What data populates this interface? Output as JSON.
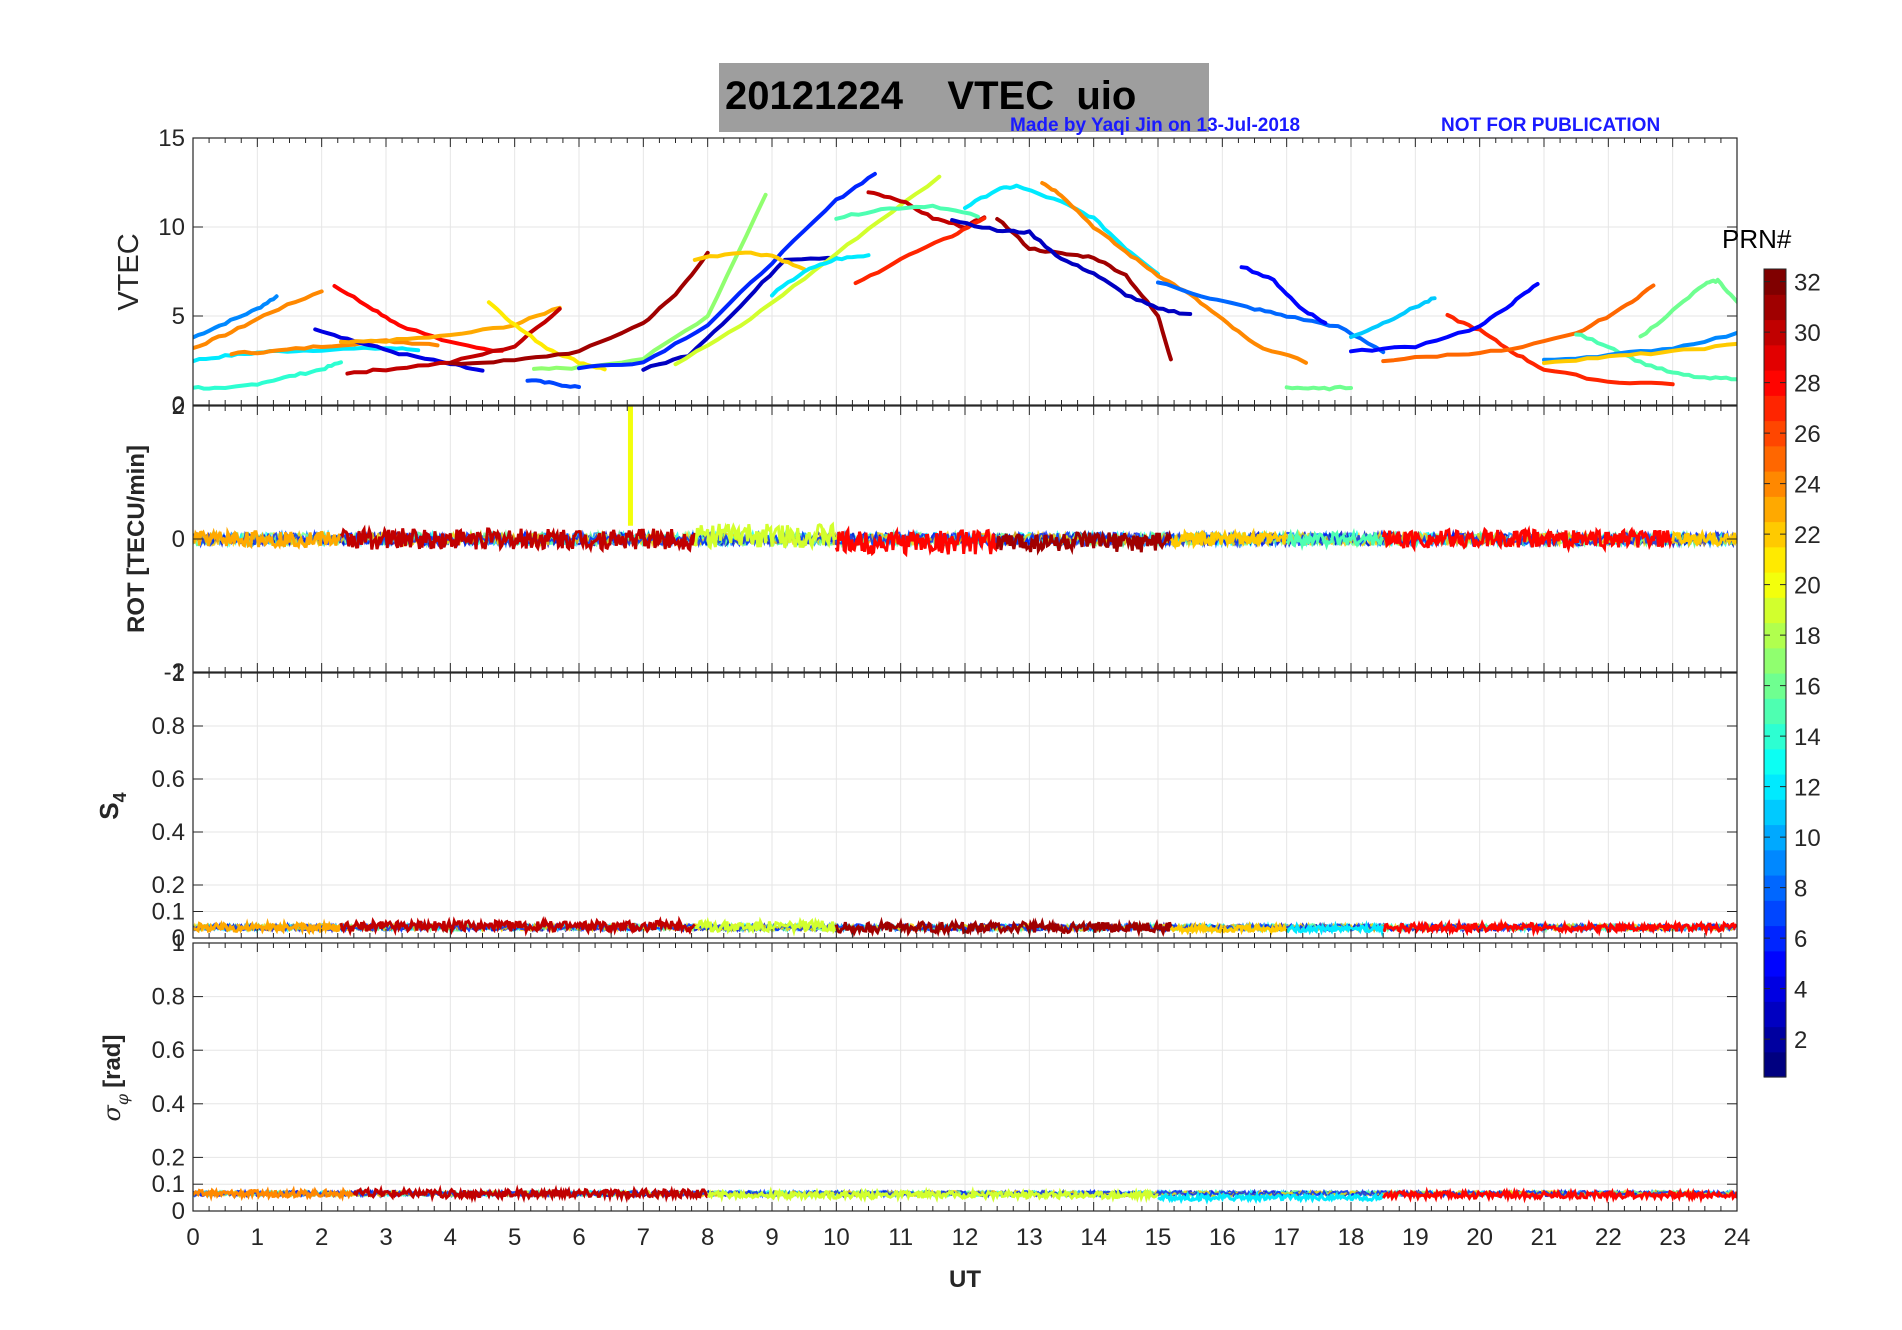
{
  "figure": {
    "title_date": "20121224",
    "title_label": "VTEC  uio",
    "credit": "Made by Yaqi Jin on 13-Jul-2018",
    "notice": "NOT FOR PUBLICATION",
    "xlabel": "UT"
  },
  "colorbar": {
    "label": "PRN#",
    "ticks": [
      "2",
      "4",
      "6",
      "8",
      "10",
      "12",
      "14",
      "16",
      "18",
      "20",
      "22",
      "24",
      "26",
      "28",
      "30",
      "32"
    ],
    "range": [
      1,
      32
    ]
  },
  "chart_data": [
    {
      "type": "line",
      "panel": "vtec",
      "ylabel": "VTEC",
      "ylim": [
        0,
        15
      ],
      "yticks": [
        "0",
        "5",
        "10",
        "15"
      ],
      "xlim": [
        0,
        24
      ],
      "xticks": [
        "0",
        "1",
        "2",
        "3",
        "4",
        "5",
        "6",
        "7",
        "8",
        "9",
        "10",
        "11",
        "12",
        "13",
        "14",
        "15",
        "16",
        "17",
        "18",
        "19",
        "20",
        "21",
        "22",
        "23",
        "24"
      ],
      "series": [
        {
          "prn": 9,
          "x": [
            0.0,
            0.5,
            1.0,
            1.3
          ],
          "y": [
            3.8,
            4.6,
            5.4,
            6.1
          ]
        },
        {
          "prn": 24,
          "x": [
            0.0,
            0.6,
            1.2,
            2.0
          ],
          "y": [
            3.2,
            4.1,
            5.2,
            6.4
          ]
        },
        {
          "prn": 12,
          "x": [
            0.0,
            0.6,
            1.2,
            2.0,
            3.0,
            3.5
          ],
          "y": [
            2.5,
            2.8,
            3.0,
            3.1,
            3.2,
            3.1
          ]
        },
        {
          "prn": 14,
          "x": [
            0.0,
            0.5,
            1.0,
            1.5,
            2.0,
            2.3
          ],
          "y": [
            1.0,
            0.9,
            1.2,
            1.6,
            2.0,
            2.4
          ]
        },
        {
          "prn": 24,
          "x": [
            0.6,
            1.2,
            2.0,
            3.0,
            3.8
          ],
          "y": [
            2.9,
            3.0,
            3.3,
            3.6,
            3.4
          ]
        },
        {
          "prn": 28,
          "x": [
            2.2,
            2.8,
            3.2,
            4.0,
            4.8
          ],
          "y": [
            6.7,
            5.4,
            4.5,
            3.5,
            3.0
          ]
        },
        {
          "prn": 4,
          "x": [
            1.9,
            2.5,
            3.2,
            4.0,
            4.5
          ],
          "y": [
            4.3,
            3.6,
            2.9,
            2.3,
            1.9
          ]
        },
        {
          "prn": 23,
          "x": [
            2.3,
            3.0,
            4.0,
            5.0,
            5.7
          ],
          "y": [
            3.5,
            3.6,
            3.9,
            4.5,
            5.5
          ]
        },
        {
          "prn": 30,
          "x": [
            2.4,
            3.0,
            4.0,
            5.0,
            5.7
          ],
          "y": [
            1.8,
            2.0,
            2.4,
            3.3,
            5.4
          ]
        },
        {
          "prn": 21,
          "x": [
            4.6,
            5.0,
            5.5,
            6.0,
            6.4
          ],
          "y": [
            5.8,
            4.5,
            3.2,
            2.4,
            2.0
          ]
        },
        {
          "prn": 7,
          "x": [
            5.2,
            5.6,
            6.0
          ],
          "y": [
            1.4,
            1.2,
            1.0
          ]
        },
        {
          "prn": 31,
          "x": [
            4.0,
            5.0,
            6.0,
            7.0,
            7.5,
            8.0
          ],
          "y": [
            2.3,
            2.5,
            3.0,
            4.6,
            6.2,
            8.5
          ]
        },
        {
          "prn": 17,
          "x": [
            5.3,
            6.0,
            7.0,
            8.0,
            8.9
          ],
          "y": [
            2.0,
            2.1,
            2.6,
            5.0,
            11.8
          ]
        },
        {
          "prn": 6,
          "x": [
            6.0,
            7.0,
            8.0,
            9.0,
            10.0,
            10.6
          ],
          "y": [
            2.1,
            2.4,
            4.5,
            8.0,
            11.5,
            13.0
          ]
        },
        {
          "prn": 3,
          "x": [
            7.0,
            7.7,
            8.5,
            9.2,
            10.0
          ],
          "y": [
            2.0,
            2.8,
            5.5,
            8.2,
            8.3
          ]
        },
        {
          "prn": 19,
          "x": [
            7.5,
            8.5,
            9.5,
            10.5,
            11.6
          ],
          "y": [
            2.3,
            4.4,
            7.1,
            9.9,
            12.8
          ]
        },
        {
          "prn": 22,
          "x": [
            7.8,
            8.5,
            9.0,
            9.5
          ],
          "y": [
            8.2,
            8.6,
            8.4,
            7.6
          ]
        },
        {
          "prn": 12,
          "x": [
            9.0,
            9.5,
            10.0,
            10.5
          ],
          "y": [
            6.2,
            7.5,
            8.2,
            8.4
          ]
        },
        {
          "prn": 30,
          "x": [
            10.5,
            11.0,
            11.5,
            12.0,
            12.3
          ],
          "y": [
            12.0,
            11.5,
            10.5,
            10.0,
            10.6
          ]
        },
        {
          "prn": 15,
          "x": [
            10.0,
            10.7,
            11.5,
            12.2
          ],
          "y": [
            10.5,
            11.0,
            11.2,
            10.6
          ]
        },
        {
          "prn": 27,
          "x": [
            10.3,
            11.0,
            11.8,
            12.3
          ],
          "y": [
            6.8,
            8.2,
            9.5,
            10.5
          ]
        },
        {
          "prn": 12,
          "x": [
            12.0,
            12.5,
            12.8,
            13.5,
            14.0,
            14.5,
            15.0
          ],
          "y": [
            11.1,
            12.1,
            12.3,
            11.4,
            10.5,
            8.8,
            7.4
          ]
        },
        {
          "prn": 24,
          "x": [
            13.2,
            13.5,
            14.0,
            14.5,
            15.0,
            15.5,
            16.0,
            16.5,
            17.3
          ],
          "y": [
            12.5,
            11.8,
            10.0,
            8.6,
            7.3,
            6.2,
            4.8,
            3.4,
            2.4
          ]
        },
        {
          "prn": 31,
          "x": [
            12.5,
            13.0,
            13.5,
            14.0,
            14.5,
            15.0,
            15.2
          ],
          "y": [
            10.5,
            8.8,
            8.5,
            8.3,
            7.3,
            5.0,
            2.6
          ]
        },
        {
          "prn": 3,
          "x": [
            11.8,
            12.5,
            13.0,
            13.5,
            14.0,
            14.5,
            15.0,
            15.5
          ],
          "y": [
            10.4,
            9.8,
            9.7,
            8.2,
            7.4,
            6.2,
            5.4,
            5.1
          ]
        },
        {
          "prn": 8,
          "x": [
            15.0,
            15.8,
            16.5,
            17.0,
            17.8,
            18.5
          ],
          "y": [
            6.9,
            6.0,
            5.4,
            5.0,
            4.4,
            3.0
          ]
        },
        {
          "prn": 16,
          "x": [
            17.0,
            17.5,
            18.0
          ],
          "y": [
            1.0,
            0.9,
            1.0
          ]
        },
        {
          "prn": 5,
          "x": [
            16.3,
            16.8,
            17.2,
            17.6
          ],
          "y": [
            7.8,
            7.0,
            5.5,
            4.6
          ]
        },
        {
          "prn": 11,
          "x": [
            18.0,
            18.5,
            19.0,
            19.3
          ],
          "y": [
            3.8,
            4.6,
            5.5,
            6.0
          ]
        },
        {
          "prn": 27,
          "x": [
            19.5,
            20.0,
            20.5,
            21.0,
            22.0,
            23.0
          ],
          "y": [
            5.0,
            4.2,
            3.0,
            2.0,
            1.3,
            1.2
          ]
        },
        {
          "prn": 5,
          "x": [
            18.0,
            19.0,
            20.0,
            20.5,
            20.9
          ],
          "y": [
            3.0,
            3.3,
            4.4,
            5.7,
            6.8
          ]
        },
        {
          "prn": 25,
          "x": [
            18.5,
            19.5,
            20.5,
            21.5,
            22.2,
            22.7
          ],
          "y": [
            2.5,
            2.8,
            3.1,
            4.0,
            5.4,
            6.7
          ]
        },
        {
          "prn": 15,
          "x": [
            21.5,
            22.0,
            22.5,
            23.0,
            23.5,
            24.0
          ],
          "y": [
            4.0,
            3.3,
            2.4,
            1.8,
            1.5,
            1.5
          ]
        },
        {
          "prn": 16,
          "x": [
            22.5,
            23.0,
            23.5,
            23.7,
            24.0
          ],
          "y": [
            3.8,
            5.3,
            6.8,
            7.0,
            5.8
          ]
        },
        {
          "prn": 9,
          "x": [
            21.0,
            22.0,
            23.0,
            24.0
          ],
          "y": [
            2.5,
            2.8,
            3.2,
            4.0
          ]
        },
        {
          "prn": 22,
          "x": [
            21.0,
            22.0,
            23.0,
            24.0
          ],
          "y": [
            2.4,
            2.7,
            3.0,
            3.4
          ]
        }
      ]
    },
    {
      "type": "line",
      "panel": "rot",
      "ylabel": "ROT [TECU/min]",
      "ylim": [
        -2,
        2
      ],
      "yticks": [
        "-2",
        "0",
        "2"
      ],
      "events": [
        {
          "label": "spike",
          "x": 6.8,
          "y_from": 0.2,
          "y_to": 2.0,
          "prn": 20
        }
      ],
      "segments": [
        {
          "prn": 23,
          "x_from": 0.0,
          "x_to": 2.3,
          "mean": 0.0,
          "amp": 0.12
        },
        {
          "prn": 30,
          "x_from": 2.3,
          "x_to": 7.8,
          "mean": 0.0,
          "amp": 0.16
        },
        {
          "prn": 19,
          "x_from": 7.8,
          "x_to": 10.0,
          "mean": 0.05,
          "amp": 0.18
        },
        {
          "prn": 28,
          "x_from": 10.0,
          "x_to": 12.5,
          "mean": -0.05,
          "amp": 0.18
        },
        {
          "prn": 31,
          "x_from": 12.5,
          "x_to": 15.2,
          "mean": -0.05,
          "amp": 0.15
        },
        {
          "prn": 22,
          "x_from": 15.2,
          "x_to": 17.0,
          "mean": 0.0,
          "amp": 0.1
        },
        {
          "prn": 15,
          "x_from": 17.0,
          "x_to": 18.5,
          "mean": 0.0,
          "amp": 0.1
        },
        {
          "prn": 28,
          "x_from": 18.5,
          "x_to": 23.0,
          "mean": 0.0,
          "amp": 0.14
        },
        {
          "prn": 22,
          "x_from": 23.0,
          "x_to": 24.0,
          "mean": 0.0,
          "amp": 0.1
        }
      ]
    },
    {
      "type": "line",
      "panel": "s4",
      "ylabel": "S4",
      "ylabel_main": "S",
      "ylabel_sub": "4",
      "ylim": [
        0,
        1
      ],
      "yticks": [
        "0",
        "0.1",
        "0.2",
        "0.4",
        "0.6",
        "0.8",
        "1"
      ],
      "segments": [
        {
          "prn": 23,
          "x_from": 0.0,
          "x_to": 2.3,
          "mean": 0.04,
          "amp": 0.015
        },
        {
          "prn": 30,
          "x_from": 2.3,
          "x_to": 7.8,
          "mean": 0.045,
          "amp": 0.02
        },
        {
          "prn": 19,
          "x_from": 7.8,
          "x_to": 10.0,
          "mean": 0.045,
          "amp": 0.02
        },
        {
          "prn": 31,
          "x_from": 10.0,
          "x_to": 15.2,
          "mean": 0.04,
          "amp": 0.02
        },
        {
          "prn": 22,
          "x_from": 15.2,
          "x_to": 17.0,
          "mean": 0.035,
          "amp": 0.012
        },
        {
          "prn": 12,
          "x_from": 17.0,
          "x_to": 18.5,
          "mean": 0.035,
          "amp": 0.012
        },
        {
          "prn": 28,
          "x_from": 18.5,
          "x_to": 24.0,
          "mean": 0.04,
          "amp": 0.015
        }
      ]
    },
    {
      "type": "line",
      "panel": "sigma",
      "ylabel": "σφ [rad]",
      "ylabel_main": "σ",
      "ylabel_sub": "φ",
      "ylabel_unit": "[rad]",
      "ylim": [
        0,
        1
      ],
      "yticks": [
        "0",
        "0.1",
        "0.2",
        "0.4",
        "0.6",
        "0.8",
        "1"
      ],
      "segments": [
        {
          "prn": 24,
          "x_from": 0.0,
          "x_to": 2.5,
          "mean": 0.065,
          "amp": 0.012
        },
        {
          "prn": 30,
          "x_from": 2.5,
          "x_to": 8.0,
          "mean": 0.065,
          "amp": 0.015
        },
        {
          "prn": 19,
          "x_from": 8.0,
          "x_to": 15.0,
          "mean": 0.06,
          "amp": 0.012
        },
        {
          "prn": 12,
          "x_from": 15.0,
          "x_to": 18.5,
          "mean": 0.05,
          "amp": 0.01
        },
        {
          "prn": 28,
          "x_from": 18.5,
          "x_to": 24.0,
          "mean": 0.06,
          "amp": 0.012
        }
      ]
    }
  ]
}
